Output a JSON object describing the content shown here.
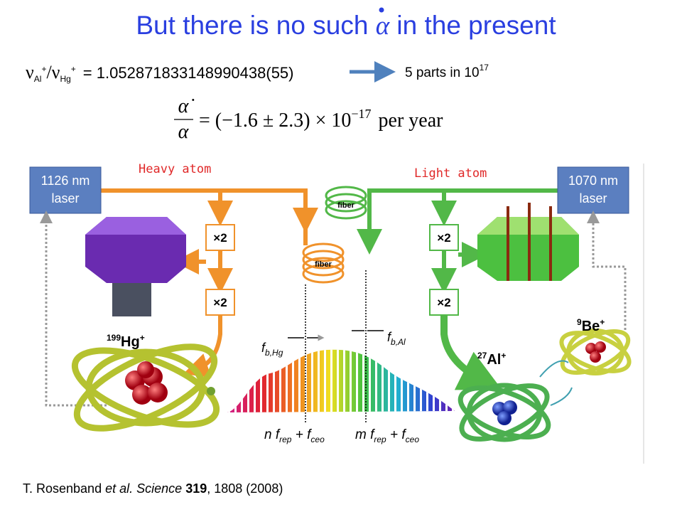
{
  "title": {
    "before": "But there is no such",
    "symbol": "α",
    "after": "in the present"
  },
  "ratio": {
    "nu1": "ν",
    "sub1": "Al",
    "sup1": "+",
    "slash": "/ν",
    "sub2": "Hg",
    "sup2": "+",
    "equals": "=",
    "value": "1.052871833148990438(55)"
  },
  "precision": {
    "text": "5 parts in 10",
    "exponent": "17"
  },
  "equation": {
    "numerator": "α̇",
    "denominator": "α",
    "body": "= (−1.6 ± 2.3) × 10",
    "exponent": "−17",
    "unit": "per year"
  },
  "labels": {
    "heavy": "Heavy atom",
    "light": "Light atom"
  },
  "diagram": {
    "left_laser": [
      "1126 nm",
      "laser"
    ],
    "right_laser": [
      "1070 nm",
      "laser"
    ],
    "doublers": [
      "×2",
      "×2",
      "×2",
      "×2"
    ],
    "fibers": [
      "fiber",
      "fiber"
    ],
    "hg": {
      "mass": "199",
      "symbol": "Hg",
      "charge": "+"
    },
    "al": {
      "mass": "27",
      "symbol": "Al",
      "charge": "+"
    },
    "be": {
      "mass": "9",
      "symbol": "Be",
      "charge": "+"
    },
    "fb_hg": {
      "f": "f",
      "sub": "b,Hg"
    },
    "fb_al": {
      "f": "f",
      "sub": "b,Al"
    },
    "comb_n": {
      "n": "n f",
      "rep": "rep",
      "plus": "+ f",
      "ceo": "ceo"
    },
    "comb_m": {
      "n": "m f",
      "rep": "rep",
      "plus": "+ f",
      "ceo": "ceo"
    }
  },
  "citation": {
    "authors": "T. Rosenband",
    "etal": "et al.",
    "journal": "Science",
    "volume": "319",
    "rest": ", 1808 (2008)"
  }
}
